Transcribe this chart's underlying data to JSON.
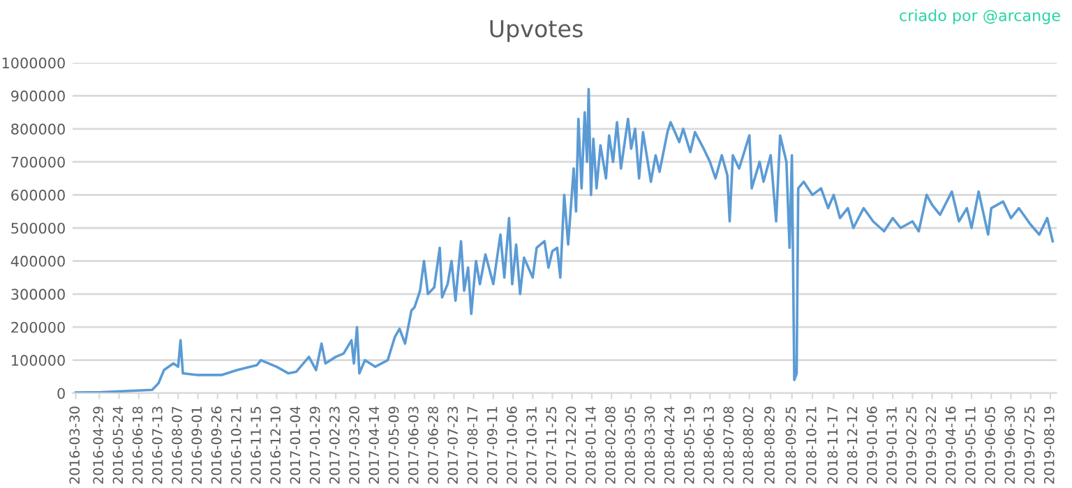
{
  "chart_data": {
    "type": "line",
    "title": "Upvotes",
    "annotations": [
      "criado por @arcange"
    ],
    "x": [
      "2016-03-30",
      "2016-05-01",
      "2016-06-15",
      "2016-07-05",
      "2016-07-13",
      "2016-07-20",
      "2016-08-01",
      "2016-08-07",
      "2016-08-10",
      "2016-08-13",
      "2016-09-01",
      "2016-10-01",
      "2016-10-21",
      "2016-11-15",
      "2016-11-20",
      "2016-12-10",
      "2016-12-25",
      "2017-01-04",
      "2017-01-20",
      "2017-01-29",
      "2017-02-05",
      "2017-02-10",
      "2017-02-23",
      "2017-03-05",
      "2017-03-15",
      "2017-03-18",
      "2017-03-22",
      "2017-03-25",
      "2017-04-01",
      "2017-04-14",
      "2017-04-30",
      "2017-05-09",
      "2017-05-15",
      "2017-05-22",
      "2017-05-30",
      "2017-06-03",
      "2017-06-10",
      "2017-06-15",
      "2017-06-20",
      "2017-06-28",
      "2017-07-05",
      "2017-07-08",
      "2017-07-15",
      "2017-07-20",
      "2017-07-25",
      "2017-08-01",
      "2017-08-05",
      "2017-08-10",
      "2017-08-14",
      "2017-08-20",
      "2017-08-25",
      "2017-09-01",
      "2017-09-11",
      "2017-09-20",
      "2017-09-25",
      "2017-10-01",
      "2017-10-05",
      "2017-10-10",
      "2017-10-15",
      "2017-10-20",
      "2017-10-31",
      "2017-11-05",
      "2017-11-15",
      "2017-11-20",
      "2017-11-25",
      "2017-12-01",
      "2017-12-05",
      "2017-12-10",
      "2017-12-15",
      "2017-12-22",
      "2017-12-25",
      "2017-12-28",
      "2018-01-01",
      "2018-01-05",
      "2018-01-08",
      "2018-01-10",
      "2018-01-13",
      "2018-01-16",
      "2018-01-20",
      "2018-01-25",
      "2018-02-01",
      "2018-02-05",
      "2018-02-10",
      "2018-02-15",
      "2018-02-20",
      "2018-03-01",
      "2018-03-05",
      "2018-03-10",
      "2018-03-15",
      "2018-03-20",
      "2018-03-30",
      "2018-04-05",
      "2018-04-10",
      "2018-04-20",
      "2018-04-24",
      "2018-05-05",
      "2018-05-10",
      "2018-05-19",
      "2018-05-25",
      "2018-06-05",
      "2018-06-13",
      "2018-06-20",
      "2018-06-28",
      "2018-07-05",
      "2018-07-08",
      "2018-07-12",
      "2018-07-20",
      "2018-08-02",
      "2018-08-05",
      "2018-08-15",
      "2018-08-20",
      "2018-08-29",
      "2018-09-05",
      "2018-09-10",
      "2018-09-18",
      "2018-09-22",
      "2018-09-25",
      "2018-09-28",
      "2018-10-01",
      "2018-10-03",
      "2018-10-10",
      "2018-10-21",
      "2018-11-01",
      "2018-11-10",
      "2018-11-17",
      "2018-11-25",
      "2018-12-05",
      "2018-12-12",
      "2018-12-25",
      "2019-01-06",
      "2019-01-20",
      "2019-01-31",
      "2019-02-10",
      "2019-02-25",
      "2019-03-05",
      "2019-03-15",
      "2019-03-22",
      "2019-04-01",
      "2019-04-16",
      "2019-04-25",
      "2019-05-05",
      "2019-05-11",
      "2019-05-20",
      "2019-06-01",
      "2019-06-05",
      "2019-06-20",
      "2019-06-30",
      "2019-07-10",
      "2019-07-25",
      "2019-08-05",
      "2019-08-15",
      "2019-08-22"
    ],
    "series": [
      {
        "color": "#5b9bd5",
        "values": [
          2000,
          3000,
          8000,
          10000,
          30000,
          70000,
          90000,
          80000,
          160000,
          60000,
          55000,
          55000,
          70000,
          85000,
          100000,
          80000,
          60000,
          65000,
          110000,
          70000,
          150000,
          90000,
          110000,
          120000,
          160000,
          90000,
          200000,
          60000,
          100000,
          80000,
          100000,
          170000,
          195000,
          150000,
          250000,
          260000,
          310000,
          400000,
          300000,
          320000,
          440000,
          290000,
          330000,
          400000,
          280000,
          460000,
          310000,
          380000,
          240000,
          400000,
          330000,
          420000,
          330000,
          480000,
          350000,
          530000,
          330000,
          450000,
          300000,
          410000,
          350000,
          440000,
          460000,
          380000,
          430000,
          440000,
          350000,
          600000,
          450000,
          680000,
          550000,
          830000,
          620000,
          850000,
          700000,
          920000,
          600000,
          770000,
          620000,
          750000,
          650000,
          780000,
          700000,
          820000,
          680000,
          830000,
          740000,
          800000,
          650000,
          790000,
          640000,
          720000,
          670000,
          790000,
          820000,
          760000,
          800000,
          730000,
          790000,
          740000,
          700000,
          650000,
          720000,
          660000,
          520000,
          720000,
          680000,
          780000,
          620000,
          700000,
          640000,
          720000,
          520000,
          780000,
          700000,
          440000,
          720000,
          40000,
          60000,
          620000,
          640000,
          600000,
          620000,
          560000,
          600000,
          530000,
          560000,
          500000,
          560000,
          520000,
          490000,
          530000,
          500000,
          520000,
          490000,
          600000,
          570000,
          540000,
          610000,
          520000,
          560000,
          500000,
          610000,
          480000,
          560000,
          580000,
          530000,
          560000,
          510000,
          480000,
          530000,
          460000
        ]
      }
    ],
    "xlim": [
      "2016-03-26",
      "2019-08-27"
    ],
    "xticks": [
      "2016-03-30",
      "2016-04-29",
      "2016-05-24",
      "2016-06-18",
      "2016-07-13",
      "2016-08-07",
      "2016-09-01",
      "2016-09-26",
      "2016-10-21",
      "2016-11-15",
      "2016-12-10",
      "2017-01-04",
      "2017-01-29",
      "2017-02-23",
      "2017-03-20",
      "2017-04-14",
      "2017-05-09",
      "2017-06-03",
      "2017-06-28",
      "2017-07-23",
      "2017-08-17",
      "2017-09-11",
      "2017-10-06",
      "2017-10-31",
      "2017-11-25",
      "2017-12-20",
      "2018-01-14",
      "2018-02-08",
      "2018-03-05",
      "2018-03-30",
      "2018-04-24",
      "2018-05-19",
      "2018-06-13",
      "2018-07-08",
      "2018-08-02",
      "2018-08-29",
      "2018-09-25",
      "2018-10-21",
      "2018-11-17",
      "2018-12-12",
      "2019-01-06",
      "2019-01-31",
      "2019-02-25",
      "2019-03-22",
      "2019-04-16",
      "2019-05-11",
      "2019-06-05",
      "2019-06-30",
      "2019-07-25",
      "2019-08-19"
    ],
    "ylim": [
      0,
      1000000
    ],
    "yticks": [
      0,
      100000,
      200000,
      300000,
      400000,
      500000,
      600000,
      700000,
      800000,
      900000,
      1000000
    ],
    "grid": "y",
    "legend": false,
    "marker": "none",
    "line_style": "solid"
  }
}
